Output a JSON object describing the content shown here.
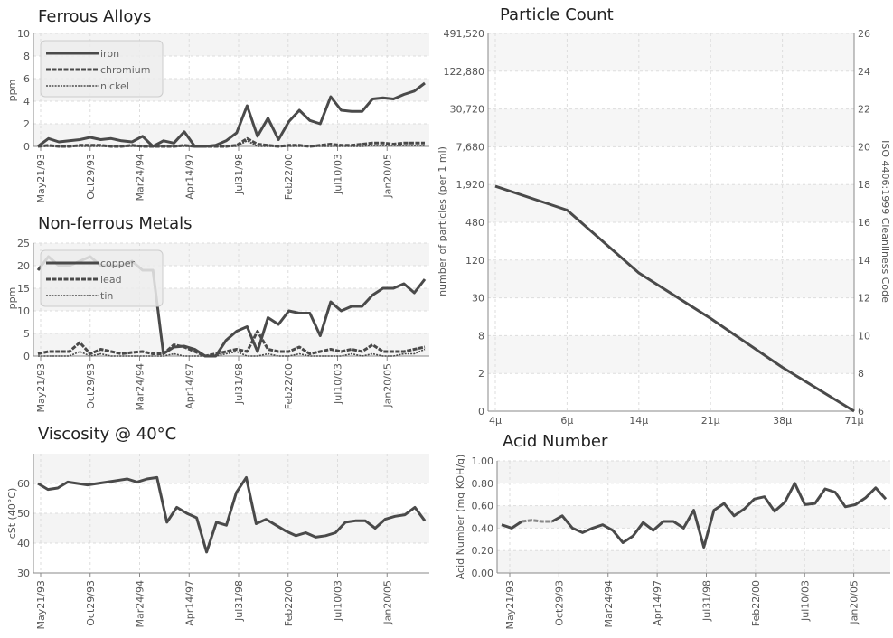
{
  "chart_data": [
    {
      "id": "ferrous",
      "type": "line",
      "title": "Ferrous Alloys",
      "ylabel": "ppm",
      "ylim": [
        0,
        10
      ],
      "yticks": [
        "0",
        "2",
        "4",
        "6",
        "8",
        "10"
      ],
      "xticks": [
        "May21/93",
        "Oct29/93",
        "Mar24/94",
        "Apr14/97",
        "Jul31/98",
        "Feb22/00",
        "Jul10/03",
        "Jan20/05"
      ],
      "legend": "top-left",
      "series": [
        {
          "name": "iron",
          "style": "solid",
          "values": [
            0,
            0.7,
            0.4,
            0.5,
            0.6,
            0.8,
            0.6,
            0.7,
            0.5,
            0.4,
            0.9,
            0,
            0.5,
            0.3,
            1.3,
            0,
            0,
            0.1,
            0.5,
            1.2,
            3.6,
            0.9,
            2.5,
            0.6,
            2.2,
            3.2,
            2.3,
            2.0,
            4.4,
            3.2,
            3.1,
            3.1,
            4.2,
            4.3,
            4.2,
            4.6,
            4.9,
            5.6
          ]
        },
        {
          "name": "chromium",
          "style": "dashed",
          "values": [
            0,
            0.1,
            0,
            0,
            0.1,
            0.1,
            0.1,
            0,
            0,
            0.1,
            0,
            0,
            0,
            0,
            0.1,
            0,
            0,
            0,
            0,
            0.1,
            0.7,
            0.2,
            0.1,
            0,
            0.1,
            0.1,
            0,
            0.1,
            0.2,
            0.1,
            0.1,
            0.2,
            0.3,
            0.3,
            0.2,
            0.3,
            0.3,
            0.3
          ]
        },
        {
          "name": "nickel",
          "style": "dotted",
          "values": [
            0,
            0,
            0,
            0,
            0,
            0,
            0,
            0,
            0,
            0,
            0,
            0,
            0,
            0,
            0,
            0,
            0,
            0,
            0,
            0,
            0.5,
            0,
            0,
            0,
            0,
            0,
            0,
            0,
            0,
            0,
            0,
            0,
            0.1,
            0.1,
            0.1,
            0.1,
            0.1,
            0.1
          ]
        }
      ]
    },
    {
      "id": "nonferrous",
      "type": "line",
      "title": "Non-ferrous Metals",
      "ylabel": "ppm",
      "ylim": [
        0,
        25
      ],
      "yticks": [
        "0",
        "5",
        "10",
        "15",
        "20",
        "25"
      ],
      "xticks": [
        "May21/93",
        "Oct29/93",
        "Mar24/94",
        "Apr14/97",
        "Jul31/98",
        "Feb22/00",
        "Jul10/03",
        "Jan20/05"
      ],
      "legend": "top-left",
      "series": [
        {
          "name": "copper",
          "style": "solid",
          "values": [
            19,
            22,
            20,
            20,
            21,
            22,
            20,
            20,
            20,
            21,
            19,
            19,
            0.5,
            2.0,
            2.2,
            1.5,
            0,
            0,
            3.5,
            5.5,
            6.5,
            1.0,
            8.5,
            7.0,
            10,
            9.5,
            9.5,
            4.5,
            12,
            10,
            11,
            11,
            13.5,
            15,
            15,
            16,
            14,
            17
          ]
        },
        {
          "name": "lead",
          "style": "dashed",
          "values": [
            0.5,
            1.0,
            1.0,
            1.0,
            3.0,
            0.5,
            1.5,
            1.0,
            0.5,
            0.8,
            1.0,
            0.5,
            0.5,
            2.5,
            2.0,
            1.0,
            0,
            0.5,
            1.0,
            1.5,
            1.0,
            5.5,
            1.5,
            1.0,
            1.0,
            2.0,
            0.5,
            1.0,
            1.5,
            1.0,
            1.5,
            1.0,
            2.5,
            1.0,
            1.0,
            1.0,
            1.5,
            2.0
          ]
        },
        {
          "name": "tin",
          "style": "dotted",
          "values": [
            0,
            0,
            0,
            0,
            1,
            0,
            0.5,
            0,
            0,
            0,
            0,
            0,
            0,
            0.5,
            0,
            0,
            0,
            0,
            0.5,
            1.0,
            0,
            0,
            0.5,
            0,
            0,
            0.5,
            0,
            0,
            0,
            0,
            0.5,
            0,
            0.5,
            0,
            0,
            0.5,
            0.5,
            1.5
          ]
        }
      ]
    },
    {
      "id": "viscosity",
      "type": "line",
      "title": "Viscosity @ 40°C",
      "ylabel": "cSt (40°C)",
      "ylim": [
        30,
        70
      ],
      "yticks": [
        "30",
        "40",
        "50",
        "60"
      ],
      "xticks": [
        "May21/93",
        "Oct29/93",
        "Mar24/94",
        "Apr14/97",
        "Jul31/98",
        "Feb22/00",
        "Jul10/03",
        "Jan20/05"
      ],
      "series": [
        {
          "name": "",
          "style": "solid",
          "values": [
            60,
            58,
            58.5,
            60.5,
            60,
            59.5,
            60,
            60.5,
            61,
            61.5,
            60.5,
            61.5,
            62,
            47,
            52,
            50,
            48.5,
            37,
            47,
            46,
            57,
            62,
            46.5,
            48,
            46,
            44,
            42.5,
            43.5,
            42,
            42.5,
            43.5,
            47,
            47.5,
            47.5,
            45,
            48,
            49,
            49.5,
            52,
            47.5
          ]
        }
      ]
    },
    {
      "id": "particle",
      "type": "line",
      "title": "Particle Count",
      "ylabel": "number of particles (per 1 ml)",
      "ylabel_right": "ISO 4406:1999 Cleanliness Code",
      "yticks": [
        "0",
        "2",
        "8",
        "30",
        "120",
        "480",
        "1,920",
        "7,680",
        "30,720",
        "122,880",
        "491,520"
      ],
      "yticks_right": [
        "6",
        "8",
        "10",
        "12",
        "14",
        "16",
        "18",
        "20",
        "22",
        "24",
        "26"
      ],
      "xticks": [
        "4μ",
        "6μ",
        "14μ",
        "21μ",
        "38μ",
        "71μ"
      ],
      "series": [
        {
          "name": "",
          "style": "solid",
          "values": [
            1920,
            800,
            80,
            15,
            2.5,
            0
          ]
        }
      ]
    },
    {
      "id": "acid",
      "type": "line",
      "title": "Acid Number",
      "ylabel": "Acid Number (mg KOH/g)",
      "ylim": [
        0,
        1
      ],
      "yticks": [
        "0.00",
        "0.20",
        "0.40",
        "0.60",
        "0.80",
        "1.00"
      ],
      "xticks": [
        "May21/93",
        "Oct29/93",
        "Mar24/94",
        "Apr14/97",
        "Jul31/98",
        "Feb22/00",
        "Jul10/03",
        "Jan20/05"
      ],
      "series": [
        {
          "name": "",
          "style": "solid",
          "values": [
            0.43,
            0.4,
            0.46,
            null,
            null,
            0.46,
            0.51,
            0.4,
            0.36,
            0.4,
            0.43,
            0.38,
            0.27,
            0.33,
            0.45,
            0.38,
            0.46,
            0.46,
            0.4,
            0.56,
            0.23,
            0.56,
            0.62,
            0.51,
            0.57,
            0.66,
            0.68,
            0.55,
            0.63,
            0.8,
            0.61,
            0.62,
            0.75,
            0.72,
            0.59,
            0.61,
            0.67,
            0.76,
            0.66
          ]
        },
        {
          "name": "",
          "style": "dashed",
          "values": [
            null,
            null,
            0.46,
            0.47,
            0.46,
            0.46,
            null,
            null,
            null,
            null,
            null,
            null,
            null,
            null,
            null,
            null,
            null,
            null,
            null,
            null,
            null,
            null,
            null,
            null,
            null,
            null,
            null,
            null,
            null,
            null,
            null,
            null,
            null,
            null,
            null,
            null,
            null,
            null,
            null
          ]
        }
      ]
    }
  ]
}
